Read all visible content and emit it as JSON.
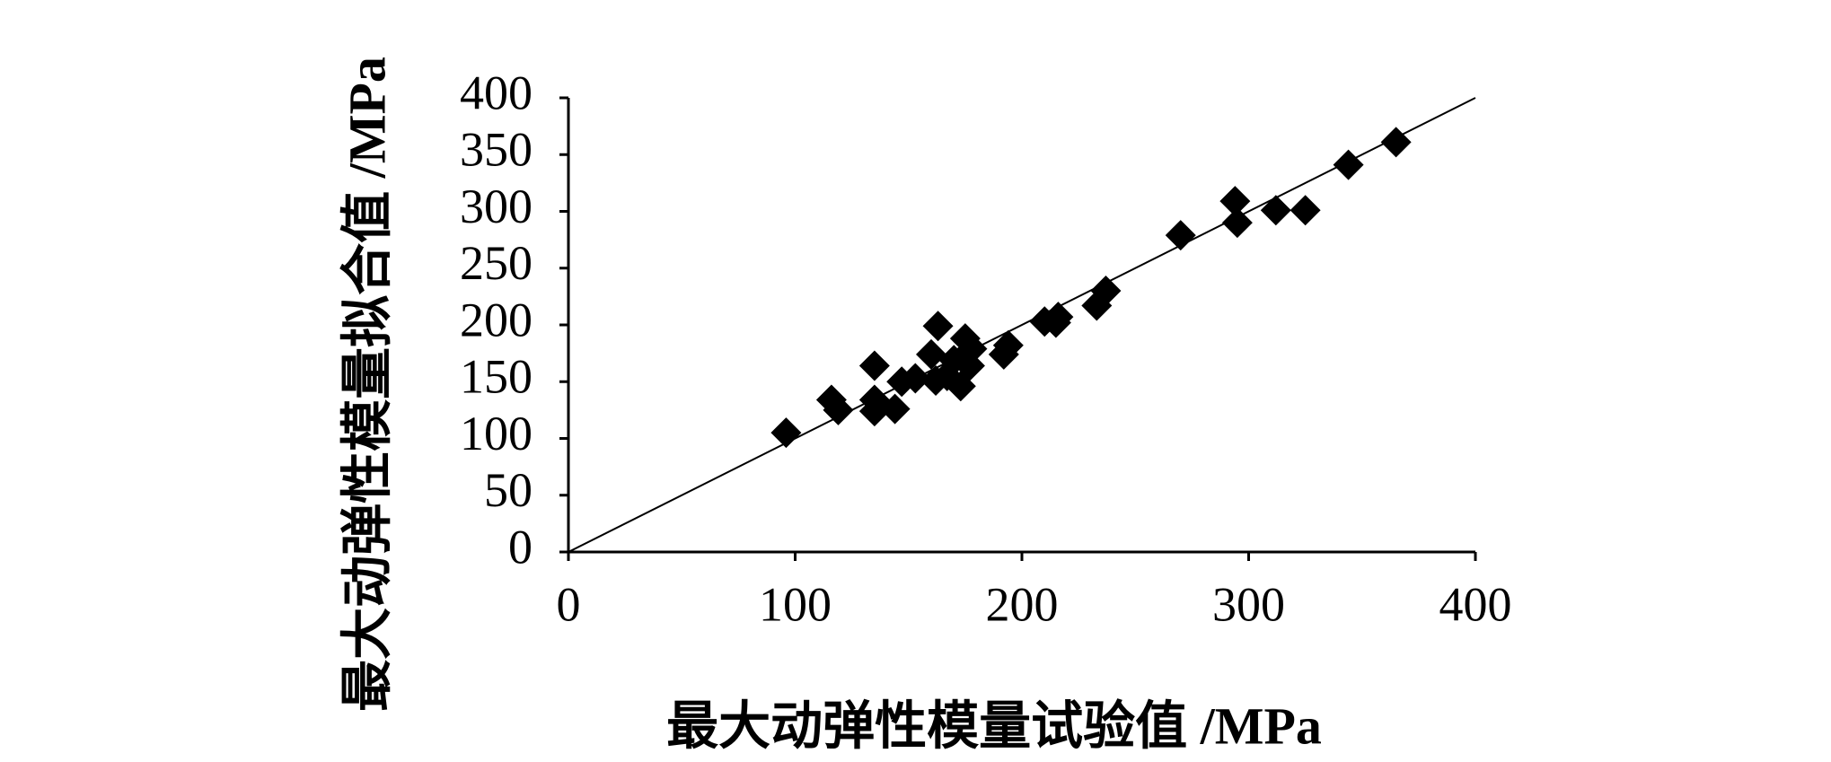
{
  "chart_data": {
    "type": "scatter",
    "xlabel": "最大动弹性模量试验值 /MPa",
    "ylabel": "最大动弹性模量拟合值 /MPa",
    "x": [
      96,
      116,
      119,
      135,
      135,
      135,
      144,
      147,
      153,
      163,
      160,
      162,
      167,
      170,
      173,
      175,
      178,
      177,
      192,
      194,
      210,
      216,
      215,
      233,
      237,
      270,
      294,
      295,
      312,
      325,
      344,
      365
    ],
    "series": [
      {
        "color": "#000000",
        "values": [
          105,
          134,
          125,
          164,
          134,
          124,
          126,
          150,
          153,
          199,
          174,
          151,
          155,
          169,
          146,
          188,
          179,
          164,
          174,
          182,
          203,
          207,
          202,
          217,
          230,
          279,
          309,
          290,
          301,
          301,
          341,
          361
        ]
      }
    ],
    "fit_line": {
      "x": [
        0,
        400
      ],
      "y": [
        0,
        400
      ],
      "color": "#000000"
    },
    "xlim": [
      0,
      400
    ],
    "ylim": [
      0,
      400
    ],
    "xticks": [
      0,
      100,
      200,
      300,
      400
    ],
    "yticks": [
      0,
      50,
      100,
      150,
      200,
      250,
      300,
      350,
      400
    ],
    "grid": false
  }
}
